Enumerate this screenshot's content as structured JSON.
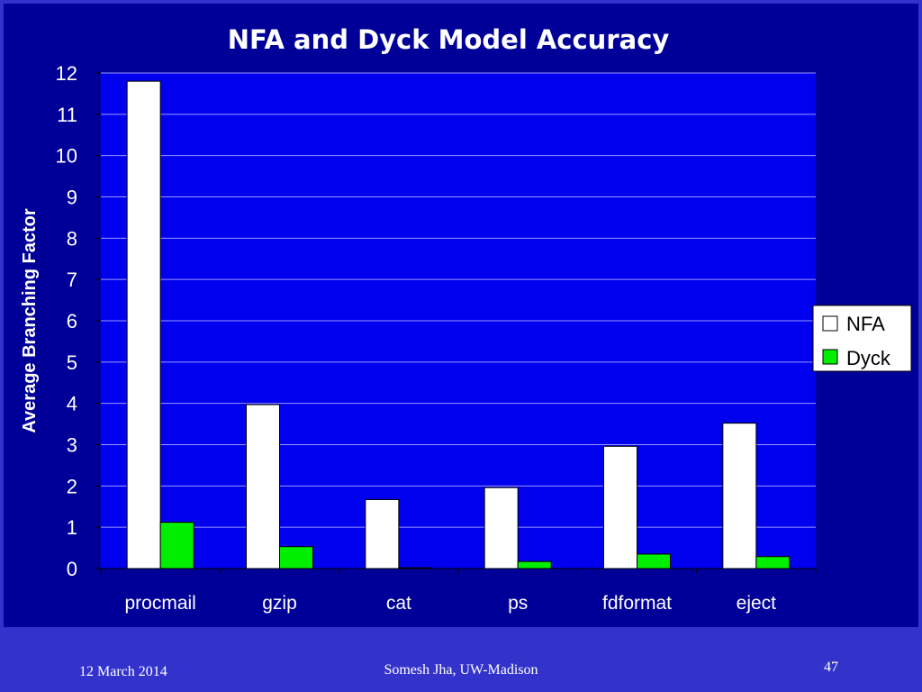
{
  "chart_data": {
    "type": "bar",
    "title": "NFA and Dyck Model Accuracy",
    "ylabel": "Average Branching Factor",
    "xlabel": "",
    "ylim": [
      0,
      12
    ],
    "yticks": [
      0,
      1,
      2,
      3,
      4,
      5,
      6,
      7,
      8,
      9,
      10,
      11,
      12
    ],
    "grid": true,
    "legend_position": "right",
    "categories": [
      "procmail",
      "gzip",
      "cat",
      "ps",
      "fdformat",
      "eject"
    ],
    "series": [
      {
        "name": "NFA",
        "color": "#ffffff",
        "values": [
          11.8,
          3.97,
          1.67,
          1.96,
          2.96,
          3.52
        ]
      },
      {
        "name": "Dyck",
        "color": "#00ee00",
        "values": [
          1.12,
          0.53,
          0.02,
          0.17,
          0.35,
          0.29
        ]
      }
    ]
  },
  "footer": {
    "date": "12 March 2014",
    "author": "Somesh Jha, UW-Madison",
    "page": "47"
  }
}
